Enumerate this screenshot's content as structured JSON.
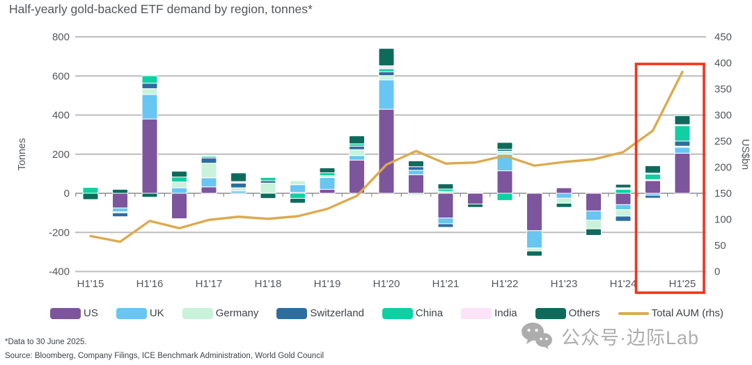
{
  "title": "Half-yearly gold-backed ETF demand by region, tonnes*",
  "footnotes": {
    "note": "*Data to 30 June 2025.",
    "source": "Source: Bloomberg, Company Filings, ICE Benchmark Administration, World Gold Council"
  },
  "watermark": {
    "icon": "wechat-icon",
    "text": "公众号·边际Lab",
    "color": "#adadad"
  },
  "colors": {
    "us": "#7d559c",
    "uk": "#69c5f1",
    "germany": "#c9f2da",
    "switzerland": "#2e6e9f",
    "china": "#10cfa2",
    "india": "#fbe3f8",
    "others": "#0e6b5c",
    "aum_line": "#dcaa4e",
    "highlight_box": "#f5321c",
    "grid": "#bcbcbc",
    "axis": "#8c8c8c",
    "text": "#53565a"
  },
  "legend": {
    "items": [
      {
        "label": "US",
        "color": "#7d559c",
        "kind": "box"
      },
      {
        "label": "UK",
        "color": "#69c5f1",
        "kind": "box"
      },
      {
        "label": "Germany",
        "color": "#c9f2da",
        "kind": "box"
      },
      {
        "label": "Switzerland",
        "color": "#2e6e9f",
        "kind": "box"
      },
      {
        "label": "China",
        "color": "#10cfa2",
        "kind": "box"
      },
      {
        "label": "India",
        "color": "#fbe3f8",
        "kind": "box"
      },
      {
        "label": "Others",
        "color": "#0e6b5c",
        "kind": "box"
      },
      {
        "label": "Total AUM (rhs)",
        "color": "#dcaa4e",
        "kind": "line"
      }
    ]
  },
  "chart_data": {
    "type": "bar",
    "subtype": "stacked-bar-with-line",
    "title": "Half-yearly gold-backed ETF demand by region, tonnes*",
    "categories": [
      "H1'15",
      "H2'15",
      "H1'16",
      "H2'16",
      "H1'17",
      "H2'17",
      "H1'18",
      "H2'18",
      "H1'19",
      "H2'19",
      "H1'20",
      "H2'20",
      "H1'21",
      "H2'21",
      "H1'22",
      "H2'22",
      "H1'23",
      "H2'23",
      "H1'24",
      "H2'24",
      "H1'25"
    ],
    "x_tick_labels": [
      "H1'15",
      "H1'16",
      "H1'17",
      "H1'18",
      "H1'19",
      "H1'20",
      "H1'21",
      "H1'22",
      "H1'23",
      "H1'24",
      "H1'25"
    ],
    "series": [
      {
        "name": "US",
        "color": "#7d559c",
        "values": [
          0,
          -75,
          380,
          -130,
          33,
          0,
          0,
          5,
          20,
          170,
          430,
          95,
          -126,
          -55,
          115,
          -191,
          28,
          -90,
          -58,
          65,
          205
        ]
      },
      {
        "name": "UK",
        "color": "#69c5f1",
        "values": [
          0,
          -20,
          125,
          28,
          46,
          12,
          0,
          39,
          60,
          23,
          150,
          23,
          -30,
          0,
          85,
          -89,
          -25,
          -48,
          -26,
          -10,
          30
        ]
      },
      {
        "name": "Germany",
        "color": "#c9f2da",
        "values": [
          0,
          -5,
          30,
          30,
          75,
          16,
          52,
          20,
          10,
          30,
          22,
          -10,
          10,
          5,
          15,
          -15,
          -26,
          -44,
          -33,
          5,
          6
        ]
      },
      {
        "name": "Switzerland",
        "color": "#2e6e9f",
        "values": [
          0,
          -20,
          28,
          0,
          27,
          24,
          12,
          0,
          0,
          18,
          20,
          18,
          -18,
          0,
          10,
          0,
          0,
          0,
          -26,
          -15,
          26
        ]
      },
      {
        "name": "China",
        "color": "#10cfa2",
        "values": [
          30,
          0,
          38,
          25,
          8,
          0,
          17,
          -26,
          15,
          12,
          15,
          0,
          12,
          0,
          -37,
          0,
          0,
          0,
          20,
          28,
          79
        ]
      },
      {
        "name": "India",
        "color": "#fbe3f8",
        "values": [
          0,
          -5,
          0,
          -4,
          -6,
          8,
          0,
          0,
          -5,
          0,
          15,
          0,
          0,
          6,
          0,
          4,
          0,
          8,
          8,
          5,
          5
        ]
      },
      {
        "name": "Others",
        "color": "#0e6b5c",
        "values": [
          -32,
          20,
          -20,
          30,
          0,
          44,
          -26,
          -24,
          25,
          41,
          89,
          30,
          26,
          -17,
          35,
          -26,
          -21,
          -33,
          18,
          38,
          46
        ]
      }
    ],
    "line_series": {
      "name": "Total AUM (rhs)",
      "color": "#dcaa4e",
      "axis": "right",
      "values": [
        68,
        57,
        97,
        83,
        99,
        105,
        101,
        106,
        120,
        145,
        205,
        231,
        207,
        209,
        222,
        203,
        210,
        215,
        229,
        270,
        383
      ]
    },
    "left_axis": {
      "title": "Tonnes",
      "min": -400,
      "max": 800,
      "ticks": [
        800,
        600,
        400,
        200,
        0,
        -200,
        -400
      ]
    },
    "right_axis": {
      "title": "US$bn",
      "min": 0,
      "max": 450,
      "ticks": [
        450,
        400,
        350,
        300,
        250,
        200,
        150,
        100,
        50,
        0
      ]
    },
    "grid": true,
    "legend_position": "bottom",
    "highlight": {
      "color": "#f5321c",
      "categories": [
        "H2'24",
        "H1'25"
      ],
      "note": "red box highlighting latest period"
    }
  }
}
